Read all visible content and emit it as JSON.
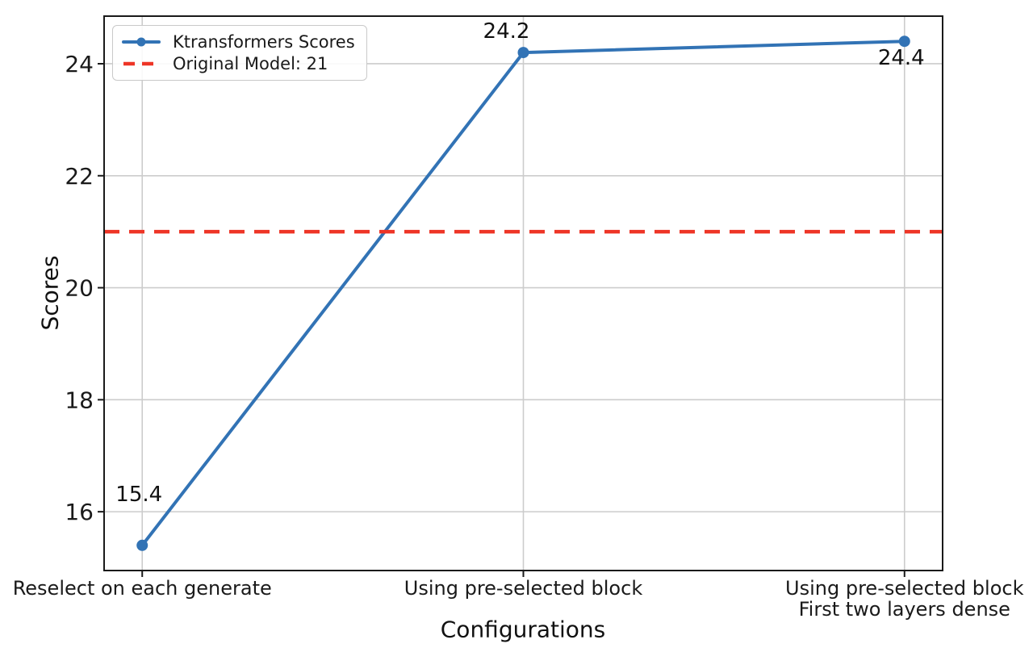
{
  "figure": {
    "background": "#ffffff",
    "text_color": "#1a1a1a",
    "grid_color": "#cccccc",
    "spine_color": "#1a1a1a"
  },
  "chart_data": {
    "type": "line",
    "title": "",
    "xlabel": "Configurations",
    "ylabel": "Scores",
    "categories": [
      {
        "lines": [
          "Reselect on each generate"
        ]
      },
      {
        "lines": [
          "Using pre-selected block"
        ]
      },
      {
        "lines": [
          "Using pre-selected block",
          "First two layers dense"
        ]
      }
    ],
    "series": [
      {
        "name": "Ktransformers Scores",
        "values": [
          15.4,
          24.2,
          24.4
        ],
        "point_labels": [
          "15.4",
          "24.2",
          "24.4"
        ],
        "color": "#3273b5",
        "line_style": "solid",
        "marker": "circle"
      }
    ],
    "baseline": {
      "label": "Original Model: 21",
      "value": 21,
      "color": "#ee3526",
      "line_style": "dashed"
    },
    "yticks": [
      16,
      18,
      20,
      22,
      24
    ],
    "ylim": [
      14.95,
      24.85
    ],
    "grid": true,
    "legend_position": "upper left"
  }
}
